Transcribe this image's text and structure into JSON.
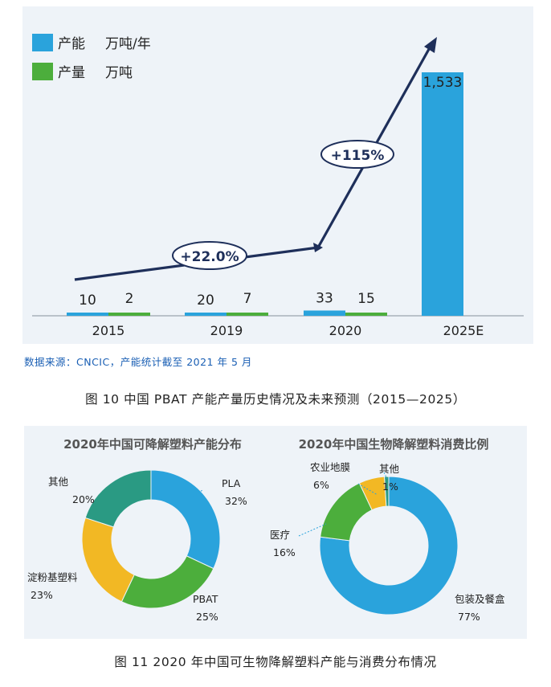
{
  "figure1": {
    "chart_data": {
      "type": "bar",
      "categories": [
        "2015",
        "2019",
        "2020",
        "2025E"
      ],
      "series": [
        {
          "name": "产能",
          "unit": "万吨/年",
          "color": "#2aa3dc",
          "values": [
            10,
            20,
            33,
            1533
          ],
          "labels": [
            "10",
            "20",
            "33",
            "1,533"
          ]
        },
        {
          "name": "产量",
          "unit": "万吨",
          "color": "#4cae3c",
          "values": [
            2,
            7,
            15,
            null
          ],
          "labels": [
            "2",
            "7",
            "15",
            ""
          ]
        }
      ],
      "annotations": [
        "+22.0%",
        "+115%"
      ],
      "ylim": [
        0,
        1533
      ]
    },
    "source_text": "数据来源：CNCIC，产能统计截至 2021 年 5 月",
    "caption": "图 10  中国 PBAT 产能产量历史情况及未来预测（2015—2025）"
  },
  "figure2": {
    "chart_data": [
      {
        "type": "pie",
        "title": "2020年中国可降解塑料产能分布",
        "slices": [
          {
            "label": "PLA",
            "value": 32,
            "pct": "32%",
            "color": "#2aa3dc"
          },
          {
            "label": "PBAT",
            "value": 25,
            "pct": "25%",
            "color": "#4cae3c"
          },
          {
            "label": "淀粉基塑料",
            "value": 23,
            "pct": "23%",
            "color": "#f2b824"
          },
          {
            "label": "其他",
            "value": 20,
            "pct": "20%",
            "color": "#2a9a83"
          }
        ]
      },
      {
        "type": "pie",
        "title": "2020年中国生物降解塑料消费比例",
        "slices": [
          {
            "label": "包装及餐盒",
            "value": 77,
            "pct": "77%",
            "color": "#2aa3dc"
          },
          {
            "label": "医疗",
            "value": 16,
            "pct": "16%",
            "color": "#4cae3c"
          },
          {
            "label": "农业地膜",
            "value": 6,
            "pct": "6%",
            "color": "#f2b824"
          },
          {
            "label": "其他",
            "value": 1,
            "pct": "1%",
            "color": "#2a9a83"
          }
        ]
      }
    ],
    "caption": "图 11  2020 年中国可生物降解塑料产能与消费分布情况"
  }
}
